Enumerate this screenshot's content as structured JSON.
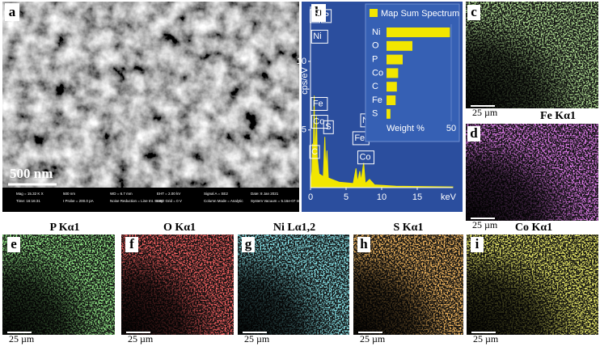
{
  "panels": [
    {
      "label": "a",
      "scale_bar": "500 nm"
    },
    {
      "label": "b"
    },
    {
      "label": "c",
      "scale_bar": "25 µm"
    },
    {
      "label": "d",
      "title": "Fe Kα1",
      "scale_bar": "25 µm"
    },
    {
      "label": "e",
      "title": "P Kα1",
      "scale_bar": "25 µm"
    },
    {
      "label": "f",
      "title": "O Kα1",
      "scale_bar": "25 µm"
    },
    {
      "label": "g",
      "title": "Ni Lα1,2",
      "scale_bar": "25 µm"
    },
    {
      "label": "h",
      "title": "S Kα1",
      "scale_bar": "25 µm"
    },
    {
      "label": "i",
      "title": "Co Kα1",
      "scale_bar": "25 µm"
    }
  ],
  "sem_info": [
    "Mag = 15.32 K X",
    "500 nm",
    "WD = 6.7 mm",
    "EHT = 2.00 kV",
    "Signal A = SE2",
    "Date: 8 Jan 2021",
    "Time: 16:16:31",
    "I Probe = 200.0 pA",
    "Noise Reduction = Line Int. Busy",
    "ESD Grid = 0 V",
    "Column Mode = Analytic",
    "System Vacuum = 5.16e-07 mbar"
  ],
  "chart_data": [
    {
      "type": "area",
      "x_label": "keV",
      "y_label": "cps/eV",
      "color": "#f2e600",
      "x": [
        0,
        0.2,
        0.28,
        0.35,
        0.52,
        0.6,
        0.7,
        0.78,
        0.85,
        0.95,
        1.2,
        1.8,
        2.01,
        2.15,
        2.31,
        2.5,
        4,
        6,
        6.4,
        6.6,
        6.93,
        7.1,
        7.47,
        7.7,
        8.3,
        9,
        12,
        20
      ],
      "values": [
        1,
        2,
        4,
        2,
        7.5,
        3,
        4,
        5,
        6,
        3,
        1.8,
        1.6,
        4.5,
        2,
        3.5,
        1.5,
        1.2,
        1.1,
        2.2,
        1.2,
        2,
        1.3,
        2.6,
        1.1,
        1.4,
        1,
        0.9,
        0.85
      ],
      "xlim": [
        0,
        20
      ],
      "xticks": [
        0,
        5,
        10,
        15
      ],
      "ylim": [
        0.8,
        14
      ],
      "yticks": [
        5,
        10
      ],
      "annotations": [
        {
          "text": "O",
          "x": 0.4,
          "y": 13.3
        },
        {
          "text": "P",
          "x": 2.0,
          "y": 13.3
        },
        {
          "text": "Ni",
          "x": 0.6,
          "y": 11.8
        },
        {
          "text": "Fe",
          "x": 0.55,
          "y": 6.9
        },
        {
          "text": "Co",
          "x": 0.6,
          "y": 5.6
        },
        {
          "text": "C",
          "x": 0.35,
          "y": 3.4
        },
        {
          "text": "S",
          "x": 2.3,
          "y": 5.2
        },
        {
          "text": "Ni",
          "x": 7.5,
          "y": 5.7
        },
        {
          "text": "Fe",
          "x": 6.4,
          "y": 4.4
        },
        {
          "text": "Co",
          "x": 7.1,
          "y": 3.0
        }
      ]
    },
    {
      "type": "hbar",
      "title": "Map Sum Spectrum",
      "x_label": "Weight %",
      "color": "#f2e600",
      "categories": [
        "Ni",
        "O",
        "P",
        "Co",
        "C",
        "Fe",
        "S"
      ],
      "values": [
        49,
        20,
        12.5,
        9,
        8,
        7,
        3
      ],
      "xlim": [
        0,
        55
      ],
      "xticks": [
        50
      ]
    }
  ]
}
